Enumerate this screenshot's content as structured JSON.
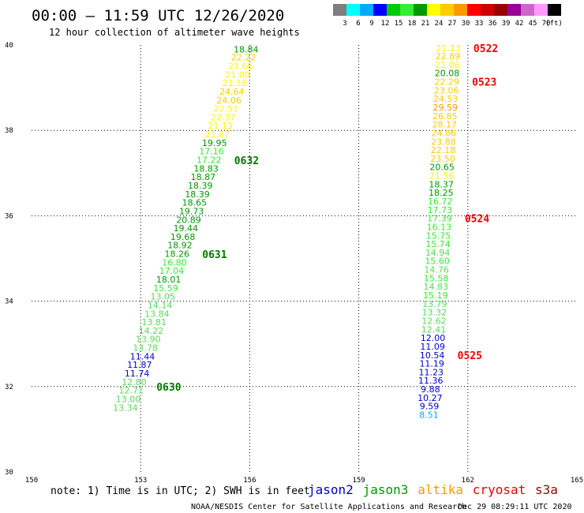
{
  "header": {
    "title": "00:00 – 11:59 UTC 12/26/2020",
    "subtitle": "12 hour collection of altimeter wave heights"
  },
  "color_scale": {
    "colors": [
      "#7f7f7f",
      "#00ffff",
      "#00aaff",
      "#0000ff",
      "#00cc00",
      "#33ee33",
      "#009900",
      "#ffff00",
      "#ffcc00",
      "#ff9900",
      "#ff0000",
      "#cc0000",
      "#990000",
      "#990099",
      "#cc66cc",
      "#ff99ff",
      "#000000"
    ],
    "labels": [
      "3",
      "6",
      "9",
      "12",
      "15",
      "18",
      "21",
      "24",
      "27",
      "30",
      "33",
      "36",
      "39",
      "42",
      "45",
      "70",
      "(ft)"
    ]
  },
  "footer": {
    "note": "note:  1) Time is in UTC;  2) SWH is in feet",
    "credit": "NOAA/NESDIS Center for Satellite Applications and Research",
    "timestamp": "Dec 29 08:29:11 UTC 2020"
  },
  "legend": [
    {
      "label": "jason2",
      "color": "#0000cc"
    },
    {
      "label": "jason3",
      "color": "#009900"
    },
    {
      "label": "altika",
      "color": "#ff9900"
    },
    {
      "label": "cryosat",
      "color": "#ee0000"
    },
    {
      "label": "s3a",
      "color": "#990000"
    }
  ],
  "chart_data": {
    "type": "scatter",
    "xlim": [
      150,
      165
    ],
    "ylim": [
      30,
      40
    ],
    "x_ticks": [
      "150",
      "153",
      "156",
      "159",
      "162",
      "165"
    ],
    "y_ticks": [
      "30",
      "32",
      "34",
      "36",
      "38",
      "40"
    ],
    "grid": true,
    "tracks": [
      {
        "points": [
          {
            "x": 155.9,
            "y": 39.9,
            "v": "18.84",
            "c": "#009900"
          },
          {
            "x": 155.83,
            "y": 39.71,
            "v": "22.22",
            "c": "#ffcc00"
          },
          {
            "x": 155.75,
            "y": 39.51,
            "v": "21.66",
            "c": "#ffff00"
          },
          {
            "x": 155.67,
            "y": 39.31,
            "v": "21.09",
            "c": "#ffff00"
          },
          {
            "x": 155.59,
            "y": 39.11,
            "v": "21.18",
            "c": "#ffff00"
          },
          {
            "x": 155.51,
            "y": 38.91,
            "v": "24.64",
            "c": "#ffcc00"
          },
          {
            "x": 155.43,
            "y": 38.71,
            "v": "24.06",
            "c": "#ffcc00"
          },
          {
            "x": 155.35,
            "y": 38.51,
            "v": "22.51",
            "c": "#ffff00"
          },
          {
            "x": 155.27,
            "y": 38.31,
            "v": "22.37",
            "c": "#ffff00"
          },
          {
            "x": 155.19,
            "y": 38.11,
            "v": "21.13",
            "c": "#ffff00"
          },
          {
            "x": 155.11,
            "y": 37.91,
            "v": "21.87",
            "c": "#ffff00"
          },
          {
            "x": 155.03,
            "y": 37.71,
            "v": "19.95",
            "c": "#009900"
          },
          {
            "x": 154.95,
            "y": 37.51,
            "v": "17.16",
            "c": "#33ee33"
          },
          {
            "x": 154.88,
            "y": 37.31,
            "v": "17.22",
            "c": "#33ee33"
          },
          {
            "x": 154.8,
            "y": 37.11,
            "v": "18.83",
            "c": "#009900"
          },
          {
            "x": 154.72,
            "y": 36.91,
            "v": "18.87",
            "c": "#009900"
          },
          {
            "x": 154.64,
            "y": 36.71,
            "v": "18.39",
            "c": "#009900"
          },
          {
            "x": 154.56,
            "y": 36.51,
            "v": "18.39",
            "c": "#009900"
          },
          {
            "x": 154.48,
            "y": 36.31,
            "v": "18.65",
            "c": "#009900"
          },
          {
            "x": 154.4,
            "y": 36.11,
            "v": "19.73",
            "c": "#009900"
          },
          {
            "x": 154.32,
            "y": 35.91,
            "v": "20.89",
            "c": "#009900"
          },
          {
            "x": 154.24,
            "y": 35.71,
            "v": "19.44",
            "c": "#009900"
          },
          {
            "x": 154.16,
            "y": 35.51,
            "v": "19.68",
            "c": "#009900"
          },
          {
            "x": 154.08,
            "y": 35.31,
            "v": "18.92",
            "c": "#009900"
          },
          {
            "x": 154.0,
            "y": 35.11,
            "v": "18.26",
            "c": "#009900"
          },
          {
            "x": 153.93,
            "y": 34.91,
            "v": "16.80",
            "c": "#33ee33"
          },
          {
            "x": 153.85,
            "y": 34.71,
            "v": "17.04",
            "c": "#33ee33"
          },
          {
            "x": 153.77,
            "y": 34.51,
            "v": "18.01",
            "c": "#009900"
          },
          {
            "x": 153.69,
            "y": 34.31,
            "v": "15.59",
            "c": "#33ee33"
          },
          {
            "x": 153.61,
            "y": 34.11,
            "v": "13.05",
            "c": "#55dd55"
          },
          {
            "x": 153.53,
            "y": 33.91,
            "v": "14.14",
            "c": "#55dd55"
          },
          {
            "x": 153.45,
            "y": 33.71,
            "v": "13.84",
            "c": "#55dd55"
          },
          {
            "x": 153.37,
            "y": 33.51,
            "v": "13.81",
            "c": "#55dd55"
          },
          {
            "x": 153.29,
            "y": 33.31,
            "v": "14.22",
            "c": "#55dd55"
          },
          {
            "x": 153.21,
            "y": 33.11,
            "v": "13.90",
            "c": "#55dd55"
          },
          {
            "x": 153.13,
            "y": 32.91,
            "v": "13.78",
            "c": "#55dd55"
          },
          {
            "x": 153.05,
            "y": 32.71,
            "v": "11.44",
            "c": "#0000cc"
          },
          {
            "x": 152.97,
            "y": 32.51,
            "v": "11.87",
            "c": "#0000cc"
          },
          {
            "x": 152.9,
            "y": 32.31,
            "v": "11.74",
            "c": "#0000cc"
          },
          {
            "x": 152.82,
            "y": 32.11,
            "v": "12.80",
            "c": "#55dd55"
          },
          {
            "x": 152.74,
            "y": 31.91,
            "v": "12.71",
            "c": "#55dd55"
          },
          {
            "x": 152.66,
            "y": 31.71,
            "v": "13.00",
            "c": "#55dd55"
          },
          {
            "x": 152.58,
            "y": 31.51,
            "v": "13.34",
            "c": "#55dd55"
          }
        ],
        "times": [
          {
            "y": 37.3,
            "label": "0632",
            "color": "#007700"
          },
          {
            "y": 35.1,
            "label": "0631",
            "color": "#007700"
          },
          {
            "y": 32.0,
            "label": "0630",
            "color": "#007700"
          }
        ]
      },
      {
        "points": [
          {
            "x": 161.46,
            "y": 39.93,
            "v": "21.13",
            "c": "#ffff00"
          },
          {
            "x": 161.45,
            "y": 39.74,
            "v": "22.89",
            "c": "#ffcc00"
          },
          {
            "x": 161.44,
            "y": 39.54,
            "v": "21.06",
            "c": "#ffff00"
          },
          {
            "x": 161.43,
            "y": 39.34,
            "v": "20.08",
            "c": "#009900"
          },
          {
            "x": 161.42,
            "y": 39.14,
            "v": "22.29",
            "c": "#ffcc00"
          },
          {
            "x": 161.41,
            "y": 38.94,
            "v": "23.06",
            "c": "#ffcc00"
          },
          {
            "x": 161.39,
            "y": 38.74,
            "v": "24.53",
            "c": "#ffcc00"
          },
          {
            "x": 161.38,
            "y": 38.54,
            "v": "29.59",
            "c": "#ff9900"
          },
          {
            "x": 161.37,
            "y": 38.34,
            "v": "26.85",
            "c": "#ffcc00"
          },
          {
            "x": 161.36,
            "y": 38.14,
            "v": "28.17",
            "c": "#ffcc00"
          },
          {
            "x": 161.34,
            "y": 37.94,
            "v": "24.86",
            "c": "#ffcc00"
          },
          {
            "x": 161.33,
            "y": 37.74,
            "v": "23.88",
            "c": "#ffcc00"
          },
          {
            "x": 161.32,
            "y": 37.54,
            "v": "22.18",
            "c": "#ffcc00"
          },
          {
            "x": 161.31,
            "y": 37.34,
            "v": "23.50",
            "c": "#ffcc00"
          },
          {
            "x": 161.29,
            "y": 37.14,
            "v": "20.65",
            "c": "#009900"
          },
          {
            "x": 161.28,
            "y": 36.94,
            "v": "21.56",
            "c": "#ffff00"
          },
          {
            "x": 161.27,
            "y": 36.74,
            "v": "18.37",
            "c": "#009900"
          },
          {
            "x": 161.26,
            "y": 36.54,
            "v": "18.25",
            "c": "#009900"
          },
          {
            "x": 161.24,
            "y": 36.34,
            "v": "16.72",
            "c": "#33ee33"
          },
          {
            "x": 161.23,
            "y": 36.14,
            "v": "17.73",
            "c": "#33ee33"
          },
          {
            "x": 161.22,
            "y": 35.94,
            "v": "17.39",
            "c": "#33ee33"
          },
          {
            "x": 161.21,
            "y": 35.74,
            "v": "16.13",
            "c": "#33ee33"
          },
          {
            "x": 161.19,
            "y": 35.54,
            "v": "15.75",
            "c": "#33ee33"
          },
          {
            "x": 161.18,
            "y": 35.34,
            "v": "15.74",
            "c": "#33ee33"
          },
          {
            "x": 161.17,
            "y": 35.14,
            "v": "14.94",
            "c": "#55dd55"
          },
          {
            "x": 161.16,
            "y": 34.94,
            "v": "15.60",
            "c": "#33ee33"
          },
          {
            "x": 161.14,
            "y": 34.74,
            "v": "14.76",
            "c": "#55dd55"
          },
          {
            "x": 161.13,
            "y": 34.54,
            "v": "15.58",
            "c": "#33ee33"
          },
          {
            "x": 161.12,
            "y": 34.34,
            "v": "14.83",
            "c": "#55dd55"
          },
          {
            "x": 161.11,
            "y": 34.14,
            "v": "15.19",
            "c": "#33ee33"
          },
          {
            "x": 161.09,
            "y": 33.94,
            "v": "13.79",
            "c": "#55dd55"
          },
          {
            "x": 161.08,
            "y": 33.74,
            "v": "13.32",
            "c": "#55dd55"
          },
          {
            "x": 161.07,
            "y": 33.54,
            "v": "12.62",
            "c": "#55dd55"
          },
          {
            "x": 161.06,
            "y": 33.34,
            "v": "12.41",
            "c": "#55dd55"
          },
          {
            "x": 161.04,
            "y": 33.14,
            "v": "12.00",
            "c": "#0000cc"
          },
          {
            "x": 161.03,
            "y": 32.94,
            "v": "11.09",
            "c": "#0000cc"
          },
          {
            "x": 161.02,
            "y": 32.74,
            "v": "10.54",
            "c": "#0000cc"
          },
          {
            "x": 161.01,
            "y": 32.54,
            "v": "11.19",
            "c": "#0000cc"
          },
          {
            "x": 160.99,
            "y": 32.34,
            "v": "11.23",
            "c": "#0000cc"
          },
          {
            "x": 160.98,
            "y": 32.14,
            "v": "11.36",
            "c": "#0000cc"
          },
          {
            "x": 160.97,
            "y": 31.94,
            "v": "9.88",
            "c": "#0000cc"
          },
          {
            "x": 160.96,
            "y": 31.74,
            "v": "10.27",
            "c": "#0000cc"
          },
          {
            "x": 160.94,
            "y": 31.54,
            "v": "9.59",
            "c": "#0000cc"
          },
          {
            "x": 160.93,
            "y": 31.34,
            "v": "8.51",
            "c": "#00aaff"
          }
        ],
        "times": [
          {
            "y": 39.93,
            "label": "0522",
            "color": "#ee0000"
          },
          {
            "y": 39.14,
            "label": "0523",
            "color": "#ee0000"
          },
          {
            "y": 35.94,
            "label": "0524",
            "color": "#ee0000"
          },
          {
            "y": 32.74,
            "label": "0525",
            "color": "#ee0000"
          }
        ]
      }
    ]
  }
}
